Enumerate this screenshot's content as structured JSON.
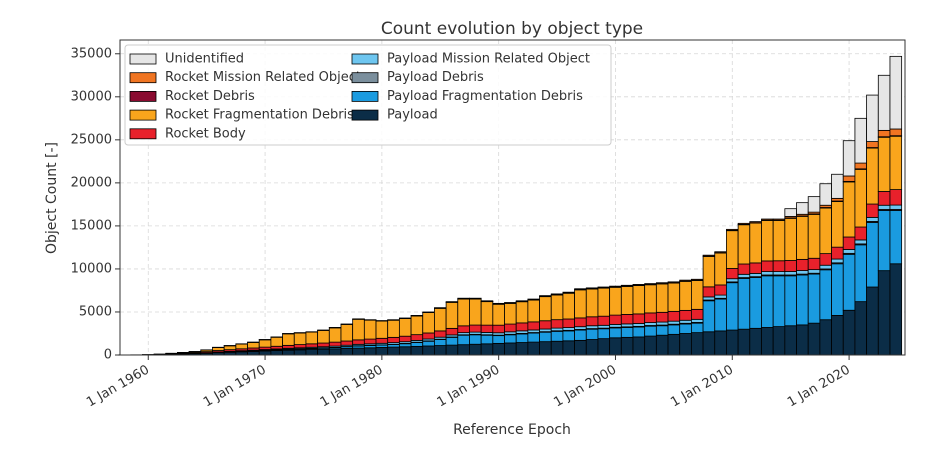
{
  "chart_data": {
    "type": "stacked_bar",
    "title": "Count evolution by object type",
    "x_label": "Reference Epoch",
    "y_label": "Object Count [-]",
    "x": [
      "1958-01-01",
      "1959-01-01",
      "1960-01-01",
      "1961-01-01",
      "1962-01-01",
      "1963-01-01",
      "1964-01-01",
      "1965-01-01",
      "1966-01-01",
      "1967-01-01",
      "1968-01-01",
      "1969-01-01",
      "1970-01-01",
      "1971-01-01",
      "1972-01-01",
      "1973-01-01",
      "1974-01-01",
      "1975-01-01",
      "1976-01-01",
      "1977-01-01",
      "1978-01-01",
      "1979-01-01",
      "1980-01-01",
      "1981-01-01",
      "1982-01-01",
      "1983-01-01",
      "1984-01-01",
      "1985-01-01",
      "1986-01-01",
      "1987-01-01",
      "1988-01-01",
      "1989-01-01",
      "1990-01-01",
      "1991-01-01",
      "1992-01-01",
      "1993-01-01",
      "1994-01-01",
      "1995-01-01",
      "1996-01-01",
      "1997-01-01",
      "1998-01-01",
      "1999-01-01",
      "2000-01-01",
      "2001-01-01",
      "2002-01-01",
      "2003-01-01",
      "2004-01-01",
      "2005-01-01",
      "2006-01-01",
      "2007-01-01",
      "2008-01-01",
      "2009-01-01",
      "2010-01-01",
      "2011-01-01",
      "2012-01-01",
      "2013-01-01",
      "2014-01-01",
      "2015-01-01",
      "2016-01-01",
      "2017-01-01",
      "2018-01-01",
      "2019-01-01",
      "2020-01-01",
      "2021-01-01",
      "2022-01-01",
      "2023-01-01",
      "2024-01-01"
    ],
    "series": [
      {
        "name": "Payload",
        "color": "#0b2d47",
        "values": [
          5,
          10,
          25,
          40,
          80,
          110,
          150,
          200,
          270,
          320,
          370,
          410,
          460,
          510,
          560,
          600,
          640,
          680,
          720,
          760,
          800,
          840,
          880,
          920,
          960,
          1000,
          1050,
          1100,
          1150,
          1200,
          1250,
          1300,
          1350,
          1400,
          1450,
          1500,
          1550,
          1600,
          1650,
          1700,
          1800,
          1900,
          2000,
          2050,
          2100,
          2200,
          2300,
          2400,
          2500,
          2600,
          2700,
          2800,
          2900,
          3000,
          3100,
          3200,
          3300,
          3400,
          3500,
          3700,
          4100,
          4600,
          5200,
          6200,
          7900,
          9800,
          10600
        ]
      },
      {
        "name": "Payload Fragmentation Debris",
        "color": "#1a9be0",
        "values": [
          0,
          0,
          0,
          5,
          10,
          15,
          20,
          30,
          40,
          50,
          60,
          70,
          80,
          90,
          100,
          110,
          120,
          130,
          150,
          200,
          250,
          260,
          270,
          300,
          350,
          450,
          550,
          700,
          900,
          1100,
          1100,
          1000,
          900,
          950,
          1000,
          1050,
          1100,
          1150,
          1150,
          1200,
          1200,
          1150,
          1150,
          1150,
          1150,
          1150,
          1100,
          1100,
          1100,
          1100,
          3600,
          3700,
          5500,
          5900,
          5900,
          6000,
          5900,
          5800,
          5800,
          5700,
          5800,
          6000,
          6500,
          6600,
          7500,
          7000,
          6200
        ]
      },
      {
        "name": "Payload Debris",
        "color": "#7b8f9d",
        "values": [
          0,
          0,
          0,
          0,
          0,
          5,
          5,
          10,
          10,
          10,
          10,
          15,
          15,
          15,
          20,
          20,
          20,
          20,
          25,
          25,
          30,
          30,
          30,
          30,
          35,
          35,
          40,
          40,
          45,
          50,
          50,
          50,
          55,
          55,
          60,
          60,
          60,
          65,
          65,
          70,
          70,
          70,
          75,
          75,
          75,
          80,
          80,
          80,
          85,
          85,
          90,
          90,
          95,
          95,
          100,
          100,
          100,
          100,
          100,
          100,
          100,
          110,
          110,
          110,
          120,
          120,
          120
        ]
      },
      {
        "name": "Payload Mission Related Object",
        "color": "#6ec6f0",
        "values": [
          0,
          0,
          5,
          5,
          10,
          15,
          20,
          30,
          40,
          50,
          60,
          70,
          80,
          90,
          100,
          110,
          120,
          130,
          140,
          150,
          160,
          170,
          180,
          190,
          200,
          210,
          220,
          230,
          240,
          250,
          260,
          270,
          280,
          290,
          300,
          300,
          310,
          310,
          320,
          320,
          330,
          330,
          330,
          340,
          340,
          340,
          350,
          350,
          350,
          360,
          360,
          370,
          370,
          380,
          380,
          390,
          390,
          400,
          410,
          420,
          430,
          440,
          450,
          460,
          470,
          480,
          500
        ]
      },
      {
        "name": "Rocket Body",
        "color": "#e8212b",
        "values": [
          5,
          10,
          20,
          30,
          50,
          70,
          90,
          120,
          160,
          190,
          220,
          250,
          280,
          310,
          340,
          370,
          400,
          430,
          460,
          490,
          520,
          550,
          580,
          610,
          640,
          670,
          700,
          730,
          760,
          790,
          820,
          850,
          880,
          900,
          920,
          940,
          960,
          980,
          1000,
          1020,
          1040,
          1060,
          1080,
          1100,
          1110,
          1120,
          1130,
          1140,
          1150,
          1160,
          1170,
          1180,
          1190,
          1200,
          1220,
          1240,
          1260,
          1280,
          1300,
          1320,
          1350,
          1380,
          1450,
          1500,
          1550,
          1600,
          1800
        ]
      },
      {
        "name": "Rocket Fragmentation Debris",
        "color": "#f9a51c",
        "values": [
          0,
          0,
          0,
          15,
          40,
          70,
          100,
          190,
          350,
          450,
          550,
          650,
          850,
          1050,
          1340,
          1350,
          1360,
          1470,
          1660,
          1930,
          2390,
          2200,
          2010,
          1990,
          2050,
          2170,
          2370,
          2620,
          3020,
          3110,
          3020,
          2730,
          2430,
          2400,
          2460,
          2530,
          2800,
          2870,
          2990,
          3260,
          3230,
          3260,
          3230,
          3250,
          3290,
          3270,
          3300,
          3290,
          3370,
          3350,
          3530,
          3710,
          4390,
          4560,
          4630,
          4700,
          4680,
          4900,
          5000,
          5100,
          5300,
          5300,
          6400,
          6700,
          6500,
          6300,
          6200
        ]
      },
      {
        "name": "Rocket Debris",
        "color": "#8a0b30",
        "values": [
          0,
          0,
          0,
          0,
          0,
          5,
          5,
          5,
          10,
          10,
          10,
          10,
          10,
          10,
          10,
          10,
          10,
          10,
          15,
          15,
          15,
          15,
          15,
          20,
          20,
          20,
          20,
          25,
          25,
          30,
          30,
          30,
          30,
          30,
          30,
          35,
          35,
          35,
          35,
          40,
          40,
          40,
          40,
          40,
          40,
          40,
          40,
          40,
          40,
          40,
          45,
          45,
          45,
          50,
          50,
          50,
          50,
          50,
          50,
          55,
          55,
          60,
          60,
          60,
          60,
          60,
          60
        ]
      },
      {
        "name": "Rocket Mission Related Object",
        "color": "#f07522",
        "values": [
          0,
          0,
          0,
          5,
          10,
          10,
          10,
          15,
          20,
          20,
          20,
          25,
          25,
          25,
          30,
          30,
          30,
          30,
          35,
          30,
          35,
          35,
          35,
          40,
          45,
          45,
          50,
          55,
          60,
          70,
          70,
          70,
          75,
          75,
          80,
          85,
          85,
          90,
          90,
          90,
          90,
          90,
          95,
          95,
          95,
          100,
          100,
          100,
          105,
          105,
          105,
          105,
          110,
          115,
          120,
          120,
          120,
          170,
          190,
          205,
          265,
          310,
          630,
          670,
          700,
          740,
          780
        ]
      },
      {
        "name": "Unidentified",
        "color": "#e6e6e6",
        "values": [
          0,
          0,
          0,
          0,
          0,
          0,
          0,
          0,
          0,
          0,
          0,
          0,
          0,
          0,
          0,
          0,
          0,
          0,
          0,
          0,
          0,
          0,
          0,
          0,
          0,
          0,
          0,
          0,
          0,
          0,
          0,
          0,
          0,
          0,
          0,
          0,
          0,
          0,
          0,
          0,
          0,
          0,
          0,
          0,
          0,
          0,
          0,
          0,
          0,
          0,
          0,
          0,
          0,
          0,
          0,
          0,
          0,
          900,
          1350,
          1800,
          2500,
          2800,
          4100,
          5200,
          5400,
          6400,
          8440
        ]
      }
    ],
    "xlim": [
      "1957-08-01",
      "2024-10-15"
    ],
    "xticks": [
      {
        "value": "1960-01-01",
        "label": "1 Jan 1960"
      },
      {
        "value": "1970-01-01",
        "label": "1 Jan 1970"
      },
      {
        "value": "1980-01-01",
        "label": "1 Jan 1980"
      },
      {
        "value": "1990-01-01",
        "label": "1 Jan 1990"
      },
      {
        "value": "2000-01-01",
        "label": "1 Jan 2000"
      },
      {
        "value": "2010-01-01",
        "label": "1 Jan 2010"
      },
      {
        "value": "2020-01-01",
        "label": "1 Jan 2020"
      }
    ],
    "ylim": [
      0,
      36600
    ],
    "yticks": [
      0,
      5000,
      10000,
      15000,
      20000,
      25000,
      30000,
      35000
    ],
    "grid": true,
    "legend": "upper left"
  }
}
